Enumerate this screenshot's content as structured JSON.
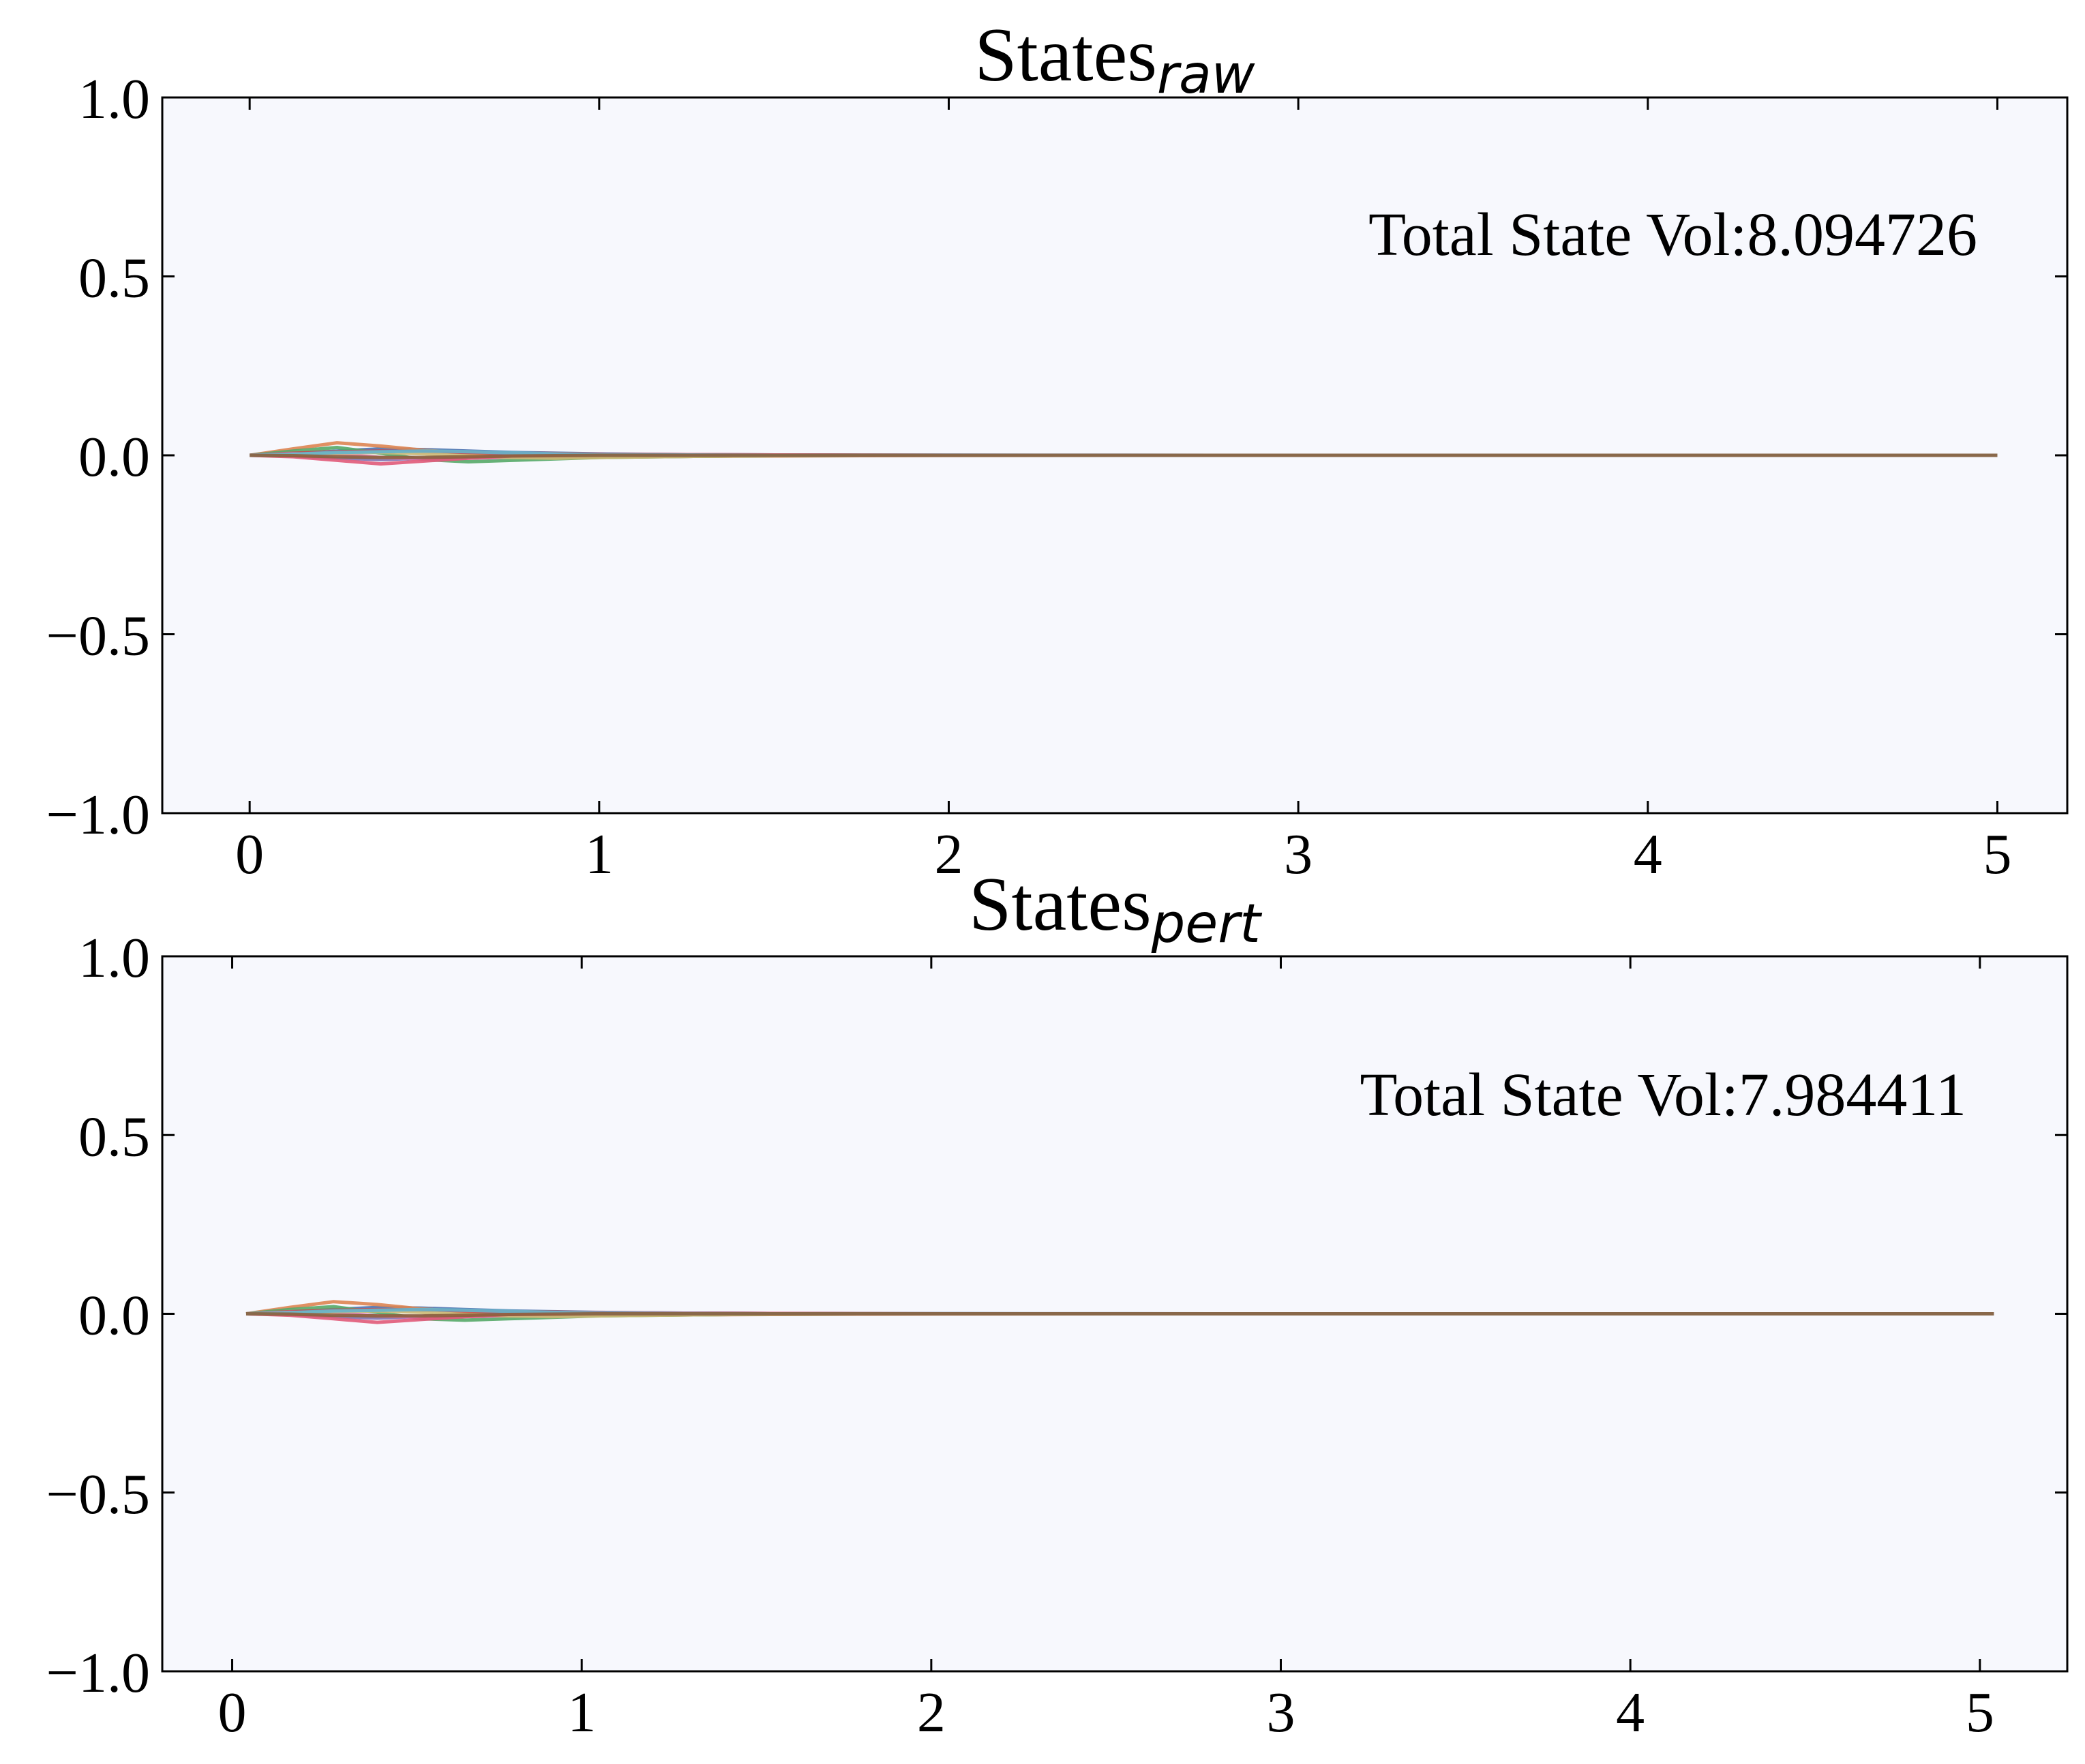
{
  "chart_data": [
    {
      "type": "line",
      "title": "States",
      "title_subscript": "raw",
      "annotation": "Total State Vol:8.094726",
      "xlim": [
        -0.25,
        5.2
      ],
      "ylim": [
        -1.0,
        1.0
      ],
      "xticks": [
        "0",
        "1",
        "2",
        "3",
        "4",
        "5"
      ],
      "yticks": [
        "1.0",
        "0.5",
        "0.0",
        "−0.5",
        "−1.0"
      ],
      "grid": false,
      "background": "#f7f8fd",
      "x": [
        0,
        0.125,
        0.25,
        0.375,
        0.5,
        0.625,
        0.75,
        0.875,
        1.0,
        1.25,
        1.5,
        1.75,
        2.0,
        2.5,
        3.0,
        3.5,
        4.0,
        4.5,
        5.0
      ],
      "series": [
        {
          "color": "#4c72b0",
          "values": [
            0,
            0.004,
            0.012,
            0.018,
            0.016,
            0.012,
            0.008,
            0.006,
            0.004,
            0.002,
            0.001,
            0.0005,
            0.0003,
            0.0001,
            0,
            0,
            0,
            0,
            0
          ]
        },
        {
          "color": "#dd8452",
          "values": [
            0,
            0.018,
            0.035,
            0.026,
            0.014,
            0.006,
            0.0,
            -0.004,
            -0.005,
            -0.003,
            -0.002,
            -0.001,
            -0.0005,
            0,
            0,
            0,
            0,
            0,
            0
          ]
        },
        {
          "color": "#55a868",
          "values": [
            0,
            0.012,
            0.022,
            0.006,
            -0.012,
            -0.018,
            -0.014,
            -0.01,
            -0.006,
            -0.003,
            -0.001,
            0,
            0,
            0,
            0,
            0,
            0,
            0,
            0
          ]
        },
        {
          "color": "#c44e52",
          "values": [
            0,
            0.006,
            0.01,
            0.012,
            0.01,
            0.008,
            0.006,
            0.005,
            0.003,
            0.002,
            0.001,
            0.0005,
            0,
            0,
            0,
            0,
            0,
            0,
            0
          ]
        },
        {
          "color": "#8172b3",
          "values": [
            0,
            -0.002,
            -0.008,
            -0.012,
            -0.008,
            -0.004,
            -0.001,
            0.001,
            0.002,
            0.001,
            0.0005,
            0,
            0,
            0,
            0,
            0,
            0,
            0,
            0
          ]
        },
        {
          "color": "#e377c2",
          "values": [
            0,
            0.004,
            0.003,
            -0.006,
            -0.01,
            -0.008,
            -0.005,
            -0.003,
            -0.002,
            -0.001,
            0,
            0,
            0,
            0,
            0,
            0,
            0,
            0,
            0
          ]
        },
        {
          "color": "#ccb974",
          "values": [
            0,
            0.002,
            0.006,
            0.008,
            0.004,
            -0.002,
            -0.006,
            -0.008,
            -0.006,
            -0.003,
            -0.001,
            0,
            0,
            0,
            0,
            0,
            0,
            0,
            0
          ]
        },
        {
          "color": "#e05a79",
          "values": [
            0,
            -0.004,
            -0.014,
            -0.024,
            -0.016,
            -0.008,
            -0.002,
            0.002,
            0.003,
            0.002,
            0.001,
            0,
            0,
            0,
            0,
            0,
            0,
            0,
            0
          ]
        },
        {
          "color": "#64b5cd",
          "values": [
            0,
            0.003,
            0.008,
            0.01,
            0.012,
            0.01,
            0.007,
            0.004,
            0.002,
            0.001,
            0,
            0,
            0,
            0,
            0,
            0,
            0,
            0,
            0
          ]
        },
        {
          "color": "#8c613c",
          "values": [
            0,
            -0.001,
            -0.004,
            -0.006,
            -0.006,
            -0.004,
            -0.002,
            -0.001,
            0,
            0,
            0,
            0,
            0,
            0,
            0,
            0,
            0,
            0,
            0
          ]
        }
      ]
    },
    {
      "type": "line",
      "title": "States",
      "title_subscript": "pert",
      "annotation": "Total State Vol:7.984411",
      "xlim": [
        -0.2,
        5.25
      ],
      "ylim": [
        -1.0,
        1.0
      ],
      "xticks": [
        "0",
        "1",
        "2",
        "3",
        "4",
        "5"
      ],
      "yticks": [
        "1.0",
        "0.5",
        "0.0",
        "−0.5",
        "−1.0"
      ],
      "grid": false,
      "background": "#f7f8fd",
      "x": [
        0.04,
        0.165,
        0.29,
        0.415,
        0.54,
        0.665,
        0.79,
        0.915,
        1.04,
        1.29,
        1.54,
        1.79,
        2.04,
        2.54,
        3.04,
        3.54,
        4.04,
        4.54,
        5.04
      ],
      "series": [
        {
          "color": "#4c72b0",
          "values": [
            0,
            0.004,
            0.012,
            0.018,
            0.016,
            0.012,
            0.008,
            0.006,
            0.004,
            0.002,
            0.001,
            0.0005,
            0.0003,
            0.0001,
            0,
            0,
            0,
            0,
            0
          ]
        },
        {
          "color": "#dd8452",
          "values": [
            0,
            0.018,
            0.034,
            0.026,
            0.014,
            0.006,
            0.0,
            -0.004,
            -0.005,
            -0.003,
            -0.002,
            -0.001,
            -0.0005,
            0,
            0,
            0,
            0,
            0,
            0
          ]
        },
        {
          "color": "#55a868",
          "values": [
            0,
            0.012,
            0.02,
            0.004,
            -0.014,
            -0.018,
            -0.014,
            -0.01,
            -0.006,
            -0.003,
            -0.001,
            0,
            0,
            0,
            0,
            0,
            0,
            0,
            0
          ]
        },
        {
          "color": "#c44e52",
          "values": [
            0,
            0.006,
            0.01,
            0.012,
            0.01,
            0.008,
            0.006,
            0.005,
            0.003,
            0.002,
            0.001,
            0.0005,
            0,
            0,
            0,
            0,
            0,
            0,
            0
          ]
        },
        {
          "color": "#8172b3",
          "values": [
            0,
            -0.002,
            -0.008,
            -0.012,
            -0.008,
            -0.004,
            -0.001,
            0.001,
            0.002,
            0.001,
            0.0005,
            0,
            0,
            0,
            0,
            0,
            0,
            0,
            0
          ]
        },
        {
          "color": "#e377c2",
          "values": [
            0,
            0.004,
            0.003,
            -0.006,
            -0.01,
            -0.008,
            -0.005,
            -0.003,
            -0.002,
            -0.001,
            0,
            0,
            0,
            0,
            0,
            0,
            0,
            0,
            0
          ]
        },
        {
          "color": "#ccb974",
          "values": [
            0,
            0.002,
            0.006,
            0.008,
            0.004,
            -0.002,
            -0.006,
            -0.008,
            -0.006,
            -0.003,
            -0.001,
            0,
            0,
            0,
            0,
            0,
            0,
            0,
            0
          ]
        },
        {
          "color": "#e05a79",
          "values": [
            0,
            -0.004,
            -0.014,
            -0.024,
            -0.016,
            -0.008,
            -0.002,
            0.002,
            0.003,
            0.002,
            0.001,
            0,
            0,
            0,
            0,
            0,
            0,
            0,
            0
          ]
        },
        {
          "color": "#64b5cd",
          "values": [
            0,
            0.003,
            0.008,
            0.01,
            0.012,
            0.01,
            0.007,
            0.004,
            0.002,
            0.001,
            0,
            0,
            0,
            0,
            0,
            0,
            0,
            0,
            0
          ]
        },
        {
          "color": "#8c613c",
          "values": [
            0,
            -0.001,
            -0.004,
            -0.006,
            -0.006,
            -0.004,
            -0.002,
            -0.001,
            0,
            0,
            0,
            0,
            0,
            0,
            0,
            0,
            0,
            0,
            0
          ]
        }
      ]
    }
  ]
}
